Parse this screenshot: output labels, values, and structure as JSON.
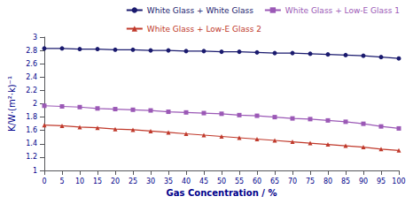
{
  "chart_data": {
    "type": "line",
    "x": [
      0,
      5,
      10,
      15,
      20,
      25,
      30,
      35,
      40,
      45,
      50,
      55,
      60,
      65,
      70,
      75,
      80,
      85,
      90,
      95,
      100
    ],
    "series": [
      {
        "name": "White Glass + White Glass",
        "color": "#1a1a6e",
        "marker": "circle",
        "values": [
          2.83,
          2.83,
          2.82,
          2.82,
          2.81,
          2.81,
          2.8,
          2.8,
          2.79,
          2.79,
          2.78,
          2.78,
          2.77,
          2.76,
          2.76,
          2.75,
          2.74,
          2.73,
          2.72,
          2.7,
          2.68
        ]
      },
      {
        "name": "White Glass + Low-E Glass 1",
        "color": "#9b59b6",
        "marker": "square",
        "values": [
          1.97,
          1.96,
          1.95,
          1.93,
          1.92,
          1.91,
          1.9,
          1.88,
          1.87,
          1.86,
          1.85,
          1.83,
          1.82,
          1.8,
          1.78,
          1.77,
          1.75,
          1.73,
          1.7,
          1.66,
          1.63
        ]
      },
      {
        "name": "White Glass + Low-E Glass 2",
        "color": "#c0392b",
        "marker": "triangle",
        "values": [
          1.68,
          1.67,
          1.65,
          1.64,
          1.62,
          1.61,
          1.59,
          1.57,
          1.55,
          1.53,
          1.51,
          1.49,
          1.47,
          1.45,
          1.43,
          1.41,
          1.39,
          1.37,
          1.35,
          1.32,
          1.3
        ]
      }
    ],
    "x_label": "Gas Concentration / %",
    "y_label": "K/W·(m²·k)⁻¹",
    "xlim": [
      0,
      100
    ],
    "xticks": [
      0,
      5,
      10,
      15,
      20,
      25,
      30,
      35,
      40,
      45,
      50,
      55,
      60,
      65,
      70,
      75,
      80,
      85,
      90,
      95,
      100
    ],
    "ylim": [
      1,
      3
    ],
    "yticks": [
      1,
      1.2,
      1.4,
      1.6,
      1.8,
      2,
      2.2,
      2.4,
      2.6,
      2.8,
      3
    ],
    "grid": false,
    "legend": "upper right"
  }
}
